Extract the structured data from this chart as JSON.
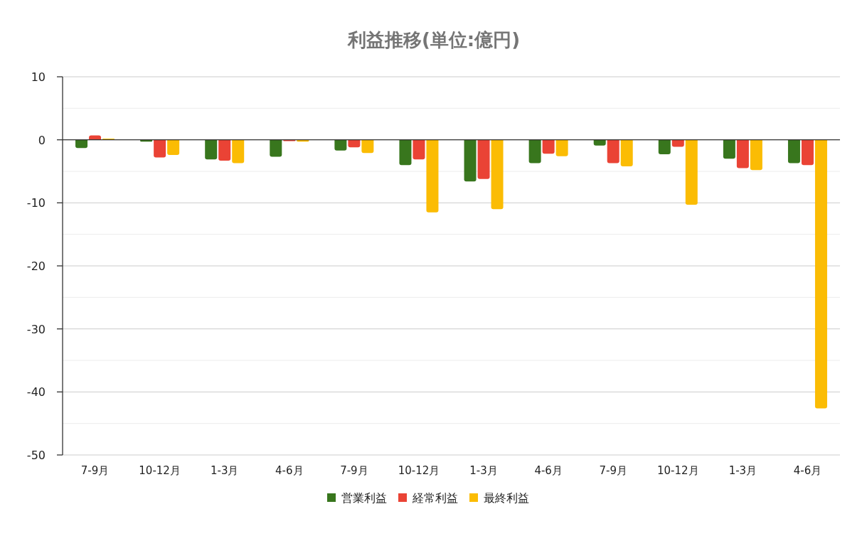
{
  "chart_data": {
    "type": "bar",
    "title": "利益推移(単位:億円)",
    "categories": [
      "7-9月",
      "10-12月",
      "1-3月",
      "4-6月",
      "7-9月",
      "10-12月",
      "1-3月",
      "4-6月",
      "7-9月",
      "10-12月",
      "1-3月",
      "4-6月"
    ],
    "series": [
      {
        "name": "営業利益",
        "color": "#38761d",
        "values": [
          -1.3,
          -0.3,
          -3.1,
          -2.7,
          -1.7,
          -4.0,
          -6.6,
          -3.7,
          -0.9,
          -2.3,
          -3.0,
          -3.7
        ]
      },
      {
        "name": "経常利益",
        "color": "#ea4335",
        "values": [
          0.7,
          -2.8,
          -3.3,
          -0.2,
          -1.2,
          -3.1,
          -6.2,
          -2.2,
          -3.7,
          -1.1,
          -4.5,
          -4.0
        ]
      },
      {
        "name": "最終利益",
        "color": "#fbbc04",
        "values": [
          0.2,
          -2.4,
          -3.7,
          -0.3,
          -2.1,
          -11.5,
          -11.0,
          -2.6,
          -4.2,
          -10.3,
          -4.8,
          -42.6
        ]
      }
    ],
    "ylim": [
      -50,
      10
    ],
    "yticks": [
      10,
      {
        "value": 5,
        "label": null
      },
      0,
      {
        "value": -5,
        "label": null
      },
      -10,
      {
        "value": -15,
        "label": null
      },
      -20,
      {
        "value": -25,
        "label": null
      },
      -30,
      {
        "value": -35,
        "label": null
      },
      -40,
      {
        "value": -45,
        "label": null
      },
      -50
    ],
    "grid": "y",
    "legend": "bottom"
  }
}
